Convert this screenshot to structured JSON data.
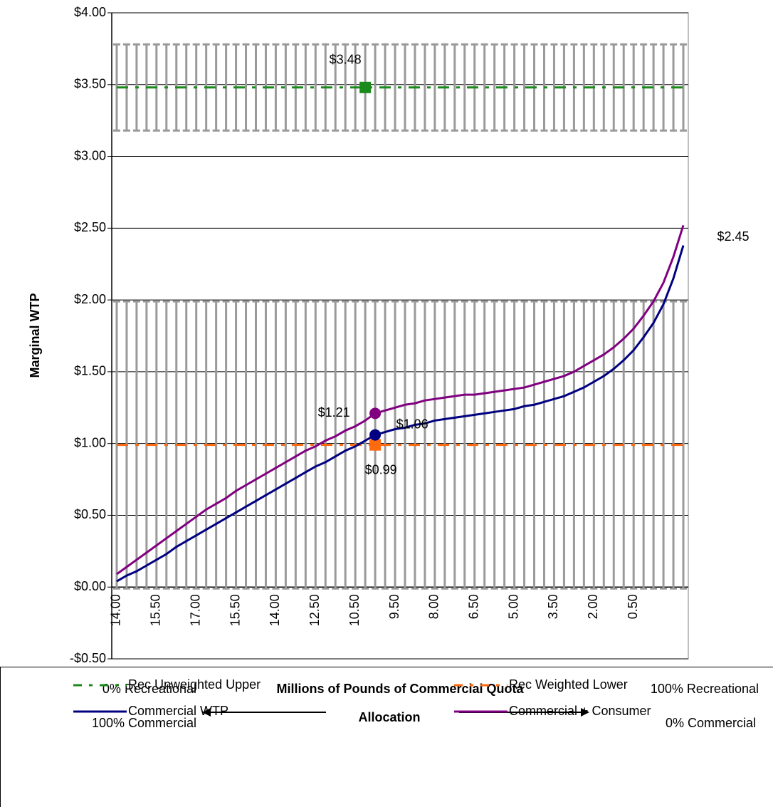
{
  "chart_data": {
    "type": "line",
    "ylabel": "Marginal WTP",
    "xlabel": [
      "Millions of Pounds of Commercial Quota",
      "Allocation"
    ],
    "left_notes": [
      "0% Recreational",
      "100% Commercial"
    ],
    "right_notes": [
      "100% Recreational",
      "0% Commercial"
    ],
    "annotation": "$2.45",
    "categories": [
      "14.00",
      null,
      null,
      null,
      "15.50",
      null,
      null,
      null,
      "17.00",
      null,
      null,
      null,
      "15.50",
      null,
      null,
      null,
      "14.00",
      null,
      null,
      null,
      "12.50",
      null,
      null,
      null,
      "10.50",
      null,
      null,
      null,
      "9.50",
      null,
      null,
      null,
      "8.00",
      null,
      null,
      null,
      "6.50",
      null,
      null,
      null,
      "5.00",
      null,
      null,
      null,
      "3.50",
      null,
      null,
      null,
      "2.00",
      null,
      null,
      null,
      "0.50",
      null,
      null,
      null,
      null,
      null
    ],
    "ylim": [
      -0.5,
      4.0
    ],
    "yticks": [
      {
        "value": -0.5,
        "label": "-$0.50"
      },
      {
        "value": 0,
        "label": "$0.00"
      },
      {
        "value": 0.5,
        "label": "$0.50"
      },
      {
        "value": 1.0,
        "label": "$1.00"
      },
      {
        "value": 1.5,
        "label": "$1.50"
      },
      {
        "value": 2.0,
        "label": "$2.00"
      },
      {
        "value": 2.5,
        "label": "$2.50"
      },
      {
        "value": 3.0,
        "label": "$3.00"
      },
      {
        "value": 3.5,
        "label": "$3.50"
      },
      {
        "value": 4.0,
        "label": "$4.00"
      }
    ],
    "grid": true,
    "series": [
      {
        "name": "Rec Unweighted Upper",
        "color": "#1a8a1a",
        "dashed": true,
        "marker": "square",
        "error": 0.3,
        "values": [
          3.48,
          3.48,
          3.48,
          3.48,
          3.48,
          3.48,
          3.48,
          3.48,
          3.48,
          3.48,
          3.48,
          3.48,
          3.48,
          3.48,
          3.48,
          3.48,
          3.48,
          3.48,
          3.48,
          3.48,
          3.48,
          3.48,
          3.48,
          3.48,
          3.48,
          3.48,
          3.48,
          3.48,
          3.48,
          3.48,
          3.48,
          3.48,
          3.48,
          3.48,
          3.48,
          3.48,
          3.48,
          3.48,
          3.48,
          3.48,
          3.48,
          3.48,
          3.48,
          3.48,
          3.48,
          3.48,
          3.48,
          3.48,
          3.48,
          3.48,
          3.48,
          3.48,
          3.48,
          3.48,
          3.48,
          3.48,
          3.48,
          3.48
        ],
        "value_labels": [
          null,
          null,
          null,
          null,
          null,
          null,
          null,
          null,
          null,
          null,
          null,
          null,
          null,
          null,
          null,
          null,
          null,
          null,
          null,
          null,
          null,
          null,
          null,
          null,
          null,
          "$3.48",
          null,
          null,
          null,
          null,
          null,
          null,
          null,
          null,
          null,
          null,
          null,
          null,
          null,
          null,
          null,
          null,
          null,
          null,
          null,
          null,
          null,
          null,
          null,
          null,
          null,
          null,
          null,
          null,
          null,
          null,
          null,
          null
        ]
      },
      {
        "name": "Rec Weighted Lower",
        "color": "#ff6a10",
        "dashed": true,
        "marker": "square",
        "error": 1.0,
        "values": [
          0.99,
          0.99,
          0.99,
          0.99,
          0.99,
          0.99,
          0.99,
          0.99,
          0.99,
          0.99,
          0.99,
          0.99,
          0.99,
          0.99,
          0.99,
          0.99,
          0.99,
          0.99,
          0.99,
          0.99,
          0.99,
          0.99,
          0.99,
          0.99,
          0.99,
          0.99,
          0.99,
          0.99,
          0.99,
          0.99,
          0.99,
          0.99,
          0.99,
          0.99,
          0.99,
          0.99,
          0.99,
          0.99,
          0.99,
          0.99,
          0.99,
          0.99,
          0.99,
          0.99,
          0.99,
          0.99,
          0.99,
          0.99,
          0.99,
          0.99,
          0.99,
          0.99,
          0.99,
          0.99,
          0.99,
          0.99,
          0.99,
          0.99
        ],
        "value_labels": [
          null,
          null,
          null,
          null,
          null,
          null,
          null,
          null,
          null,
          null,
          null,
          null,
          null,
          null,
          null,
          null,
          null,
          null,
          null,
          null,
          null,
          null,
          null,
          null,
          null,
          null,
          "$0.99",
          null,
          null,
          null,
          null,
          null,
          null,
          null,
          null,
          null,
          null,
          null,
          null,
          null,
          null,
          null,
          null,
          null,
          null,
          null,
          null,
          null,
          null,
          null,
          null,
          null,
          null,
          null,
          null,
          null,
          null,
          null
        ]
      },
      {
        "name": "Commercial WTP",
        "color": "#000080",
        "dashed": false,
        "marker": "circle",
        "values": [
          0.04,
          0.08,
          0.11,
          0.15,
          0.19,
          0.23,
          0.28,
          0.32,
          0.36,
          0.4,
          0.44,
          0.48,
          0.52,
          0.56,
          0.6,
          0.64,
          0.68,
          0.72,
          0.76,
          0.8,
          0.84,
          0.87,
          0.91,
          0.95,
          0.98,
          1.02,
          1.06,
          1.08,
          1.1,
          1.11,
          1.13,
          1.14,
          1.16,
          1.17,
          1.18,
          1.19,
          1.2,
          1.21,
          1.22,
          1.23,
          1.24,
          1.26,
          1.27,
          1.29,
          1.31,
          1.33,
          1.36,
          1.39,
          1.43,
          1.47,
          1.52,
          1.58,
          1.65,
          1.74,
          1.84,
          1.97,
          2.15,
          2.38
        ],
        "value_labels": [
          null,
          null,
          null,
          null,
          null,
          null,
          null,
          null,
          null,
          null,
          null,
          null,
          null,
          null,
          null,
          null,
          null,
          null,
          null,
          null,
          null,
          null,
          null,
          null,
          null,
          null,
          "$1.06",
          null,
          null,
          null,
          null,
          null,
          null,
          null,
          null,
          null,
          null,
          null,
          null,
          null,
          null,
          null,
          null,
          null,
          null,
          null,
          null,
          null,
          null,
          null,
          null,
          null,
          null,
          null,
          null,
          null,
          null,
          null
        ]
      },
      {
        "name": "Commercial + Consumer",
        "color": "#800080",
        "dashed": false,
        "marker": "circle",
        "values": [
          0.09,
          0.14,
          0.19,
          0.24,
          0.29,
          0.34,
          0.39,
          0.44,
          0.49,
          0.54,
          0.58,
          0.62,
          0.67,
          0.71,
          0.75,
          0.79,
          0.83,
          0.87,
          0.91,
          0.95,
          0.98,
          1.02,
          1.05,
          1.09,
          1.12,
          1.16,
          1.21,
          1.23,
          1.25,
          1.27,
          1.28,
          1.3,
          1.31,
          1.32,
          1.33,
          1.34,
          1.34,
          1.35,
          1.36,
          1.37,
          1.38,
          1.39,
          1.41,
          1.43,
          1.45,
          1.47,
          1.5,
          1.54,
          1.58,
          1.62,
          1.67,
          1.73,
          1.8,
          1.89,
          1.99,
          2.12,
          2.3,
          2.52
        ],
        "value_labels": [
          null,
          null,
          null,
          null,
          null,
          null,
          null,
          null,
          null,
          null,
          null,
          null,
          null,
          null,
          null,
          null,
          null,
          null,
          null,
          null,
          null,
          null,
          null,
          null,
          null,
          null,
          "$1.21",
          null,
          null,
          null,
          null,
          null,
          null,
          null,
          null,
          null,
          null,
          null,
          null,
          null,
          null,
          null,
          null,
          null,
          null,
          null,
          null,
          null,
          null,
          null,
          null,
          null,
          null,
          null,
          null,
          null,
          null,
          null
        ]
      }
    ]
  }
}
